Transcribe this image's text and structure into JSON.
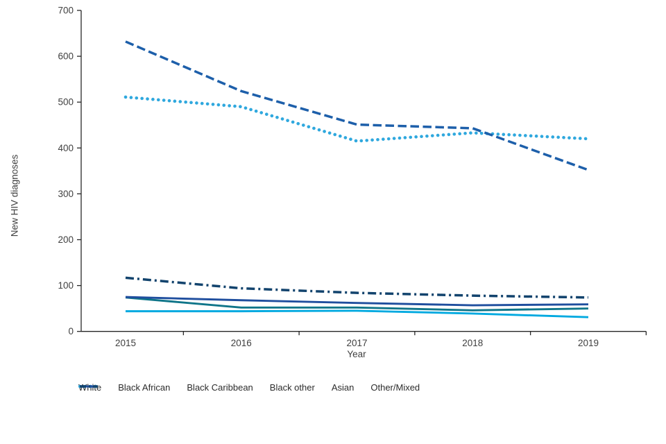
{
  "page": {
    "background": "#ffffff",
    "text_color": "#3f3f3f"
  },
  "chart_data": {
    "type": "line",
    "title": "",
    "xlabel": "Year",
    "ylabel": "New HIV diagnoses",
    "x": [
      "2015",
      "2016",
      "2017",
      "2018",
      "2019"
    ],
    "ylim": [
      0,
      700
    ],
    "yticks": [
      0,
      100,
      200,
      300,
      400,
      500,
      600,
      700
    ],
    "grid": false,
    "legend_position": "bottom",
    "series": [
      {
        "name": "White",
        "values": [
          511,
          490,
          415,
          433,
          420
        ],
        "color": "#2FA8DE",
        "style": "dotted"
      },
      {
        "name": "Black African",
        "values": [
          632,
          524,
          451,
          443,
          352
        ],
        "color": "#1D5FAA",
        "style": "dashed"
      },
      {
        "name": "Black Caribbean",
        "values": [
          74,
          52,
          52,
          46,
          50
        ],
        "color": "#0F7589",
        "style": "solid"
      },
      {
        "name": "Black other",
        "values": [
          44,
          44,
          45,
          39,
          31
        ],
        "color": "#00A9E0",
        "style": "solid"
      },
      {
        "name": "Asian",
        "values": [
          75,
          68,
          62,
          57,
          59
        ],
        "color": "#1F4E9E",
        "style": "solid"
      },
      {
        "name": "Other/Mixed",
        "values": [
          117,
          94,
          84,
          78,
          74
        ],
        "color": "#12436D",
        "style": "dashdot"
      }
    ]
  }
}
